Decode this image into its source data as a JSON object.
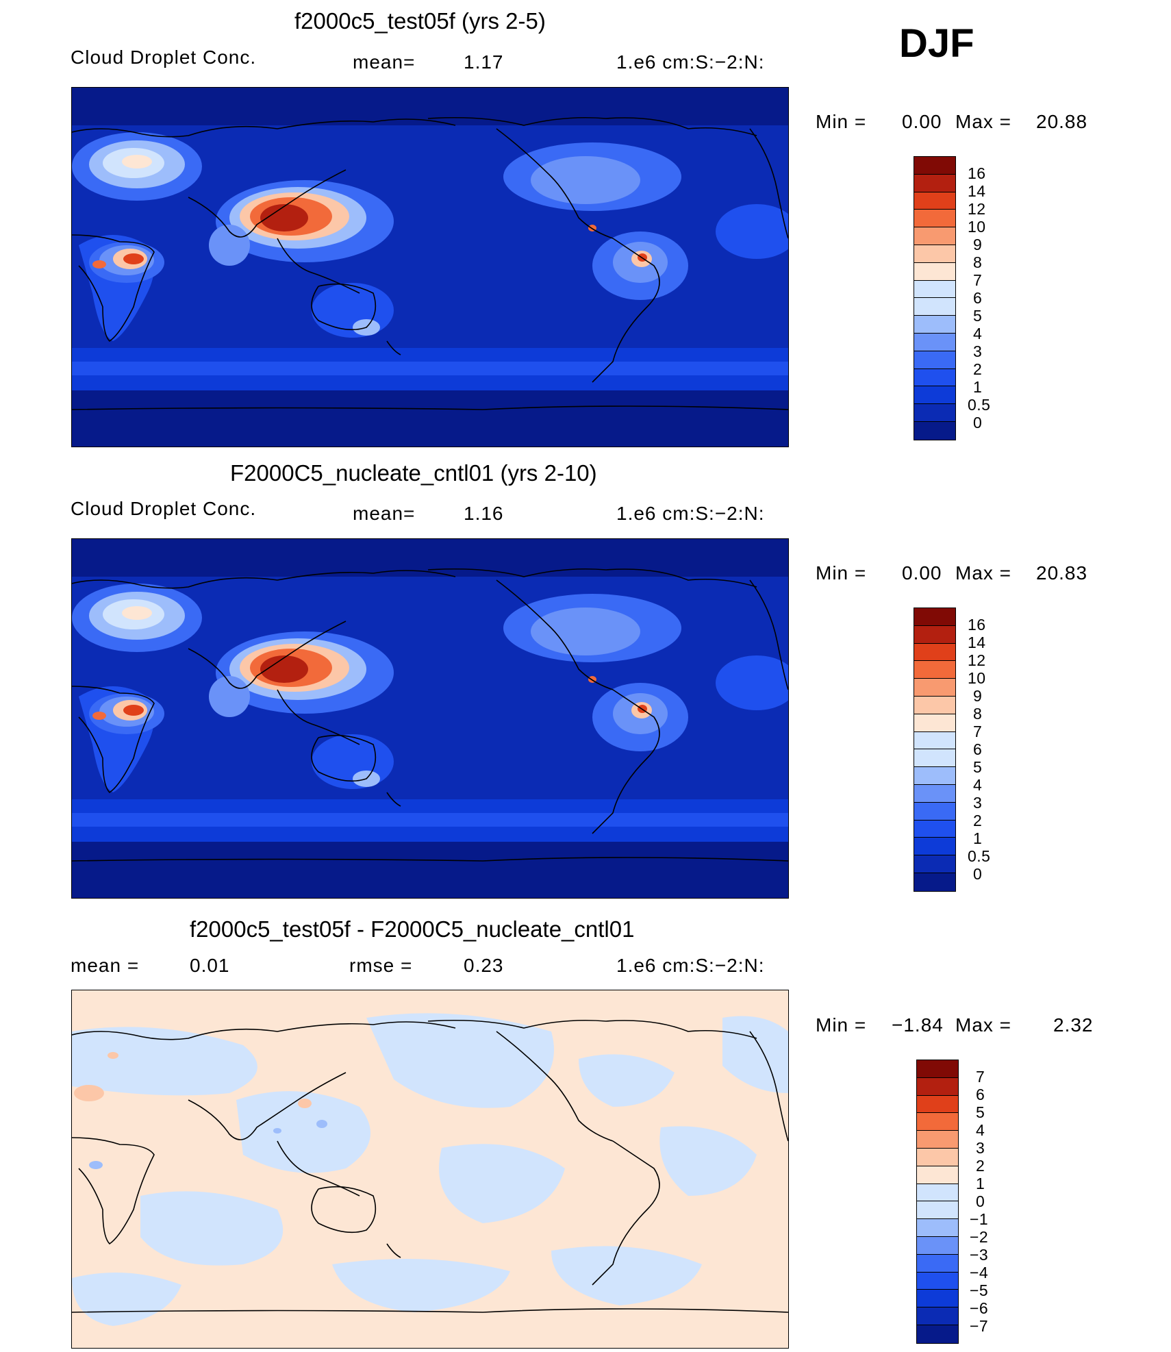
{
  "season_label": "DJF",
  "colors": {
    "abs_scale": [
      "#061a8a",
      "#0b2bb4",
      "#0d3bd8",
      "#1f50ee",
      "#3a6af5",
      "#6a92f8",
      "#9dbdfb",
      "#d1e4fd",
      "#fde6d4",
      "#fcc7a8",
      "#f89a70",
      "#f26a3a",
      "#e0401a",
      "#b32010",
      "#800a05"
    ],
    "diff_scale": [
      "#061a8a",
      "#0b2bb4",
      "#0d3bd8",
      "#1f50ee",
      "#3a6af5",
      "#6a92f8",
      "#9dbdfb",
      "#d1e4fd",
      "#fde6d4",
      "#fcc7a8",
      "#f89a70",
      "#f26a3a",
      "#e0401a",
      "#b32010",
      "#800a05"
    ]
  },
  "panels": [
    {
      "title": "f2000c5_test05f (yrs 2-5)",
      "left_text": "Cloud Droplet Conc.",
      "mid_text": "mean=",
      "mid_value": "1.17",
      "units": "1.e6 cm:S:−2:N:",
      "min_label": "Min =",
      "min_value": "0.00",
      "max_label": "Max =",
      "max_value": "20.88",
      "levels": [
        "16",
        "14",
        "12",
        "10",
        "9",
        "8",
        "7",
        "6",
        "5",
        "4",
        "3",
        "2",
        "1",
        "0.5",
        "0"
      ]
    },
    {
      "title": "F2000C5_nucleate_cntl01 (yrs 2-10)",
      "left_text": "Cloud Droplet Conc.",
      "mid_text": "mean=",
      "mid_value": "1.16",
      "units": "1.e6 cm:S:−2:N:",
      "min_label": "Min =",
      "min_value": "0.00",
      "max_label": "Max =",
      "max_value": "20.83",
      "levels": [
        "16",
        "14",
        "12",
        "10",
        "9",
        "8",
        "7",
        "6",
        "5",
        "4",
        "3",
        "2",
        "1",
        "0.5",
        "0"
      ]
    },
    {
      "title": "f2000c5_test05f - F2000C5_nucleate_cntl01",
      "left_text": "mean =",
      "left_value": "0.01",
      "mid_text": "rmse =",
      "mid_value": "0.23",
      "units": "1.e6 cm:S:−2:N:",
      "min_label": "Min =",
      "min_value": "−1.84",
      "max_label": "Max =",
      "max_value": "2.32",
      "levels": [
        "7",
        "6",
        "5",
        "4",
        "3",
        "2",
        "1",
        "0",
        "−1",
        "−2",
        "−3",
        "−4",
        "−5",
        "−6",
        "−7"
      ]
    }
  ]
}
